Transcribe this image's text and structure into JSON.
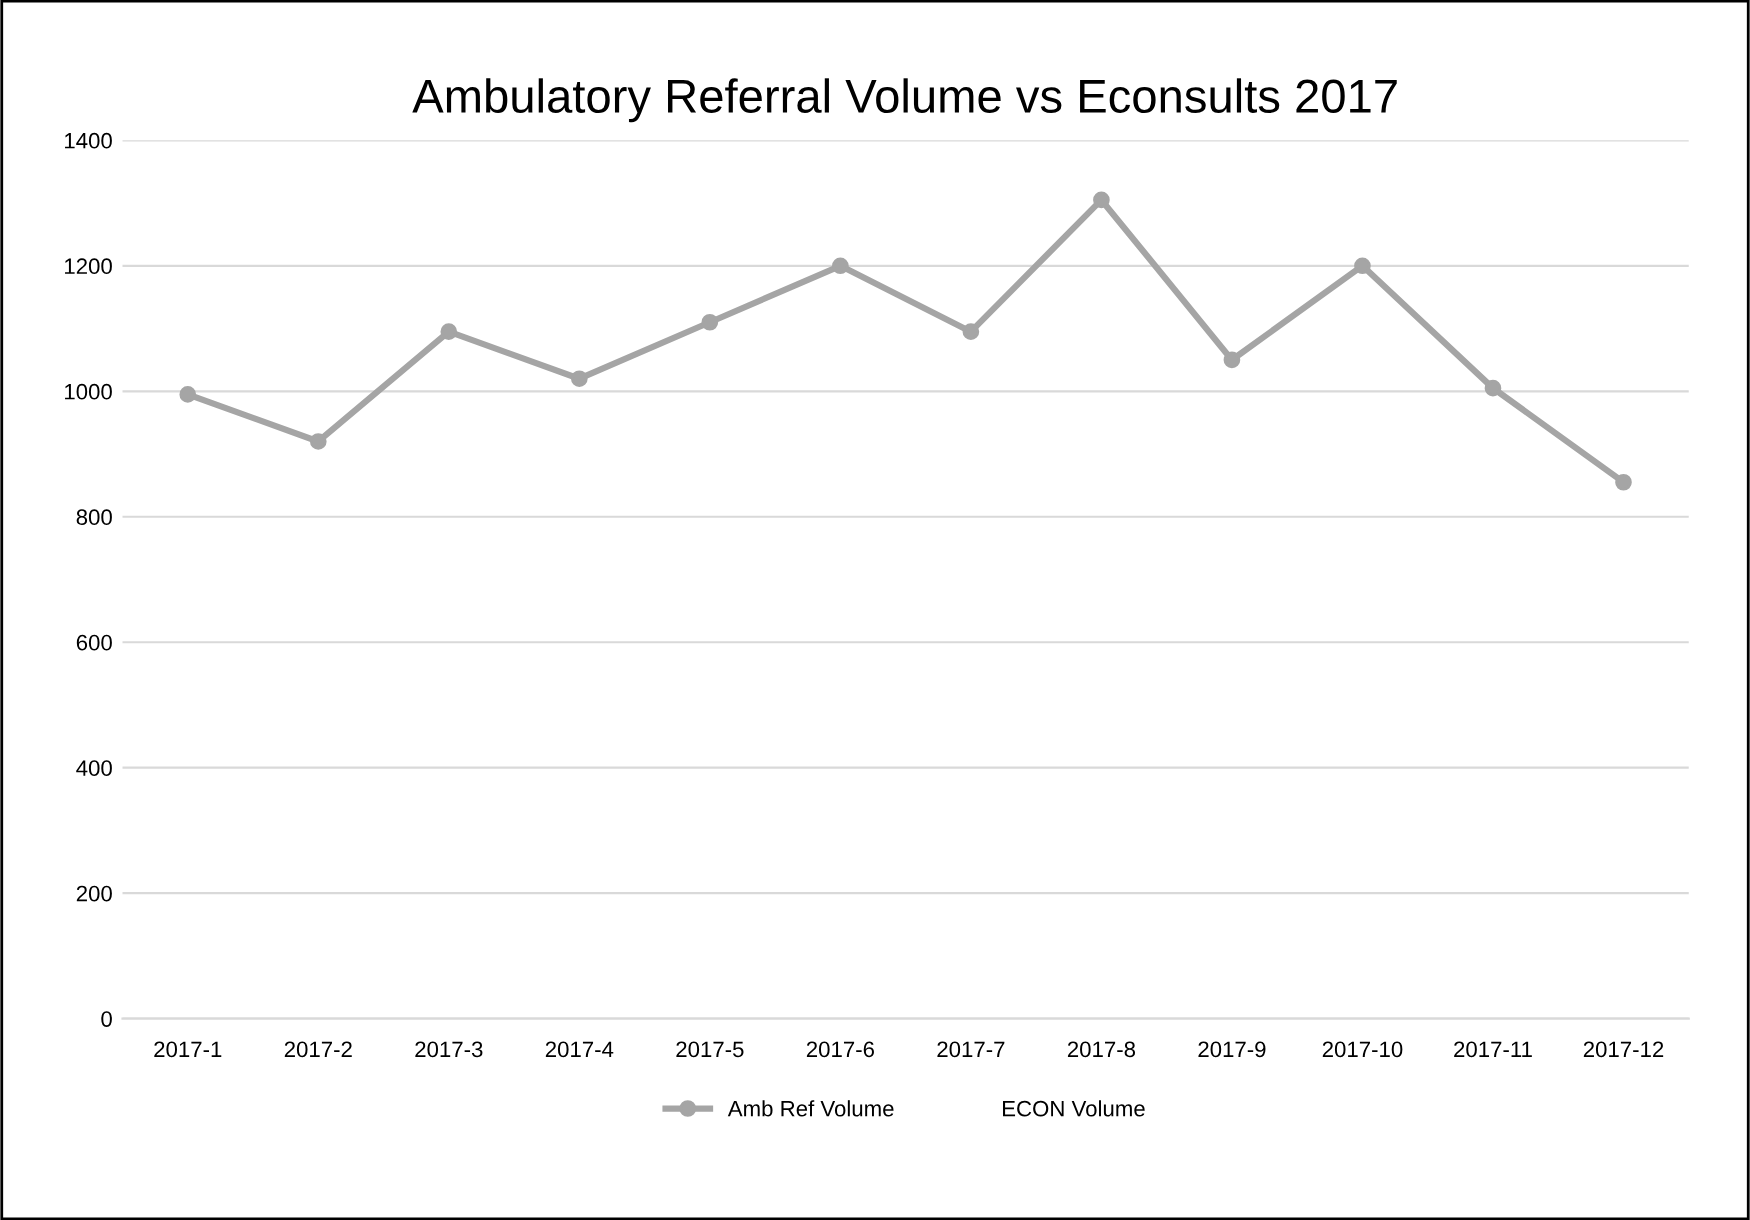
{
  "chart_data": {
    "type": "line",
    "title": "Ambulatory Referral Volume vs Econsults 2017",
    "categories": [
      "2017-1",
      "2017-2",
      "2017-3",
      "2017-4",
      "2017-5",
      "2017-6",
      "2017-7",
      "2017-8",
      "2017-9",
      "2017-10",
      "2017-11",
      "2017-12"
    ],
    "series": [
      {
        "name": "Amb Ref Volume",
        "color": "#a5a5a5",
        "values": [
          995,
          920,
          1095,
          1020,
          1110,
          1200,
          1095,
          1305,
          1050,
          1200,
          1005,
          855
        ]
      },
      {
        "name": "ECON Volume",
        "values": [
          null,
          null,
          null,
          null,
          null,
          null,
          null,
          null,
          null,
          null,
          null,
          null
        ]
      }
    ],
    "ylim": [
      0,
      1400
    ],
    "yticks": [
      0,
      200,
      400,
      600,
      800,
      1000,
      1200,
      1400
    ],
    "grid": "y",
    "legend": "bottom",
    "marker": "circle",
    "line_style": "solid"
  }
}
